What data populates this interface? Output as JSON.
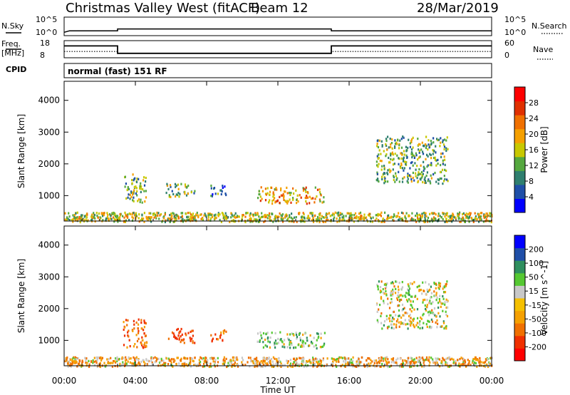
{
  "header": {
    "station": "Christmas Valley West (fitACF)",
    "beam": "Beam 12",
    "date": "28/Mar/2019"
  },
  "params": {
    "nsky_label": "N.Sky",
    "nsky_ticks": [
      "10^5",
      "10^0"
    ],
    "nsearch_label": "N.Search",
    "nsearch_ticks": [
      "10^5",
      "10^0"
    ],
    "freq_label_1": "Freq.",
    "freq_label_2": "[MHz]",
    "freq_ticks": [
      "18",
      "8"
    ],
    "nave_label": "Nave",
    "nave_ticks": [
      "60",
      "0"
    ],
    "cpid_label": "CPID",
    "cpid_value": "normal (fast) 151 RF",
    "freq_series": [
      {
        "t": 0,
        "mhz": 14.9
      },
      {
        "t": 3,
        "mhz": 14.9
      },
      {
        "t": 3,
        "mhz": 10.6
      },
      {
        "t": 15,
        "mhz": 10.6
      },
      {
        "t": 15,
        "mhz": 14.9
      },
      {
        "t": 24,
        "mhz": 14.9
      }
    ],
    "nave_series": [
      {
        "t": 0,
        "n": 22
      },
      {
        "t": 3,
        "n": 22
      },
      {
        "t": 3,
        "n": 16
      },
      {
        "t": 15,
        "n": 16
      },
      {
        "t": 15,
        "n": 22
      },
      {
        "t": 24,
        "n": 22
      }
    ],
    "nsky_series": [
      {
        "t": 0,
        "v": 0.9
      },
      {
        "t": 0.3,
        "v": 1.3
      },
      {
        "t": 3,
        "v": 1.3
      },
      {
        "t": 3,
        "v": 1.8
      },
      {
        "t": 15,
        "v": 1.8
      },
      {
        "t": 15,
        "v": 1.3
      },
      {
        "t": 24,
        "v": 1.3
      }
    ]
  },
  "chart_data": [
    {
      "type": "heatmap",
      "title": "",
      "ylabel": "Slant Range [km]",
      "xlabel": "",
      "xlim": [
        0,
        24
      ],
      "ylim": [
        200,
        4600
      ],
      "x_ticks": [
        "00:00",
        "04:00",
        "08:00",
        "12:00",
        "16:00",
        "20:00",
        "00:00"
      ],
      "y_ticks": [
        1000,
        2000,
        3000,
        4000
      ],
      "colorbar": {
        "label": "Power [dB]",
        "ticks": [
          "28",
          "24",
          "20",
          "16",
          "12",
          "8",
          "4"
        ],
        "colors": [
          "#0000ff",
          "#1f4fa8",
          "#2f7f6f",
          "#55a83f",
          "#c8c800",
          "#f5a000",
          "#f07000",
          "#e03000",
          "#ff0000"
        ]
      },
      "clusters": [
        {
          "t0": 3.3,
          "t1": 4.6,
          "r0": 800,
          "r1": 1700,
          "level": 3
        },
        {
          "t0": 5.7,
          "t1": 7.3,
          "r0": 950,
          "r1": 1400,
          "level": 3
        },
        {
          "t0": 8.2,
          "t1": 9.1,
          "r0": 1000,
          "r1": 1350,
          "level": 2
        },
        {
          "t0": 10.8,
          "t1": 14.6,
          "r0": 780,
          "r1": 1300,
          "level": 5
        },
        {
          "t0": 17.5,
          "t1": 21.5,
          "r0": 1400,
          "r1": 2900,
          "level": 3
        },
        {
          "t0": 0.0,
          "t1": 24.0,
          "r0": 200,
          "r1": 500,
          "level": 4
        }
      ]
    },
    {
      "type": "heatmap",
      "title": "",
      "ylabel": "Slant Range [km]",
      "xlabel": "Time UT",
      "xlim": [
        0,
        24
      ],
      "ylim": [
        200,
        4600
      ],
      "x_ticks": [
        "00:00",
        "04:00",
        "08:00",
        "12:00",
        "16:00",
        "20:00",
        "00:00"
      ],
      "y_ticks": [
        1000,
        2000,
        3000,
        4000
      ],
      "colorbar": {
        "label": "Velocity [m s^-1]",
        "ticks": [
          "200",
          "100",
          "50",
          "15",
          "-15",
          "-50",
          "-100",
          "-200"
        ],
        "colors": [
          "#ff0000",
          "#f03000",
          "#f07000",
          "#f5a000",
          "#f5c000",
          "#c8c8c8",
          "#55c832",
          "#2f8f5f",
          "#1f4fa8",
          "#0000ff"
        ]
      },
      "clusters": [
        {
          "t0": 3.3,
          "t1": 4.6,
          "r0": 800,
          "r1": 1700,
          "vel": -90
        },
        {
          "t0": 5.7,
          "t1": 7.3,
          "r0": 950,
          "r1": 1400,
          "vel": -110
        },
        {
          "t0": 8.2,
          "t1": 9.1,
          "r0": 1000,
          "r1": 1350,
          "vel": -90
        },
        {
          "t0": 10.8,
          "t1": 14.6,
          "r0": 780,
          "r1": 1300,
          "vel": 30
        },
        {
          "t0": 17.5,
          "t1": 21.5,
          "r0": 1400,
          "r1": 2900,
          "vel": 0
        },
        {
          "t0": 0.0,
          "t1": 24.0,
          "r0": 200,
          "r1": 500,
          "vel": -30
        }
      ]
    }
  ]
}
